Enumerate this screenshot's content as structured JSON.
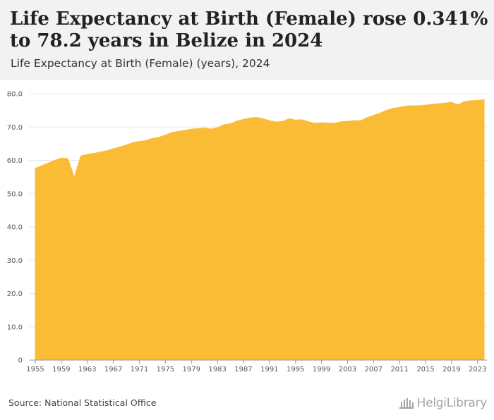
{
  "header": {
    "title": "Life Expectancy at Birth (Female) rose 0.341% to 78.2 years in Belize in 2024",
    "subtitle": "Life Expectancy at Birth (Female) (years), 2024"
  },
  "footer": {
    "source": "Source: National Statistical Office",
    "logo_text": "HelgiLibrary"
  },
  "colors": {
    "area": "#fbbc35",
    "grid": "#e6e6e6",
    "axis": "#999999"
  },
  "chart_data": {
    "type": "area",
    "title": "Life Expectancy at Birth (Female) (years), 2024",
    "xlabel": "",
    "ylabel": "",
    "ylim": [
      0,
      80
    ],
    "yticks": [
      "0",
      "10.0",
      "20.0",
      "30.0",
      "40.0",
      "50.0",
      "60.0",
      "70.0",
      "80.0"
    ],
    "yticks_values": [
      0,
      10,
      20,
      30,
      40,
      50,
      60,
      70,
      80
    ],
    "xticks": [
      "1955",
      "1959",
      "1963",
      "1967",
      "1971",
      "1975",
      "1979",
      "1983",
      "1987",
      "1991",
      "1995",
      "1999",
      "2003",
      "2007",
      "2011",
      "2015",
      "2019",
      "2023"
    ],
    "grid": true,
    "x": [
      1955,
      1956,
      1957,
      1958,
      1959,
      1960,
      1961,
      1962,
      1963,
      1964,
      1965,
      1966,
      1967,
      1968,
      1969,
      1970,
      1971,
      1972,
      1973,
      1974,
      1975,
      1976,
      1977,
      1978,
      1979,
      1980,
      1981,
      1982,
      1983,
      1984,
      1985,
      1986,
      1987,
      1988,
      1989,
      1990,
      1991,
      1992,
      1993,
      1994,
      1995,
      1996,
      1997,
      1998,
      1999,
      2000,
      2001,
      2002,
      2003,
      2004,
      2005,
      2006,
      2007,
      2008,
      2009,
      2010,
      2011,
      2012,
      2013,
      2014,
      2015,
      2016,
      2017,
      2018,
      2019,
      2020,
      2021,
      2022,
      2023,
      2024
    ],
    "series": [
      {
        "name": "Life Expectancy at Birth (Female)",
        "values": [
          57.6,
          58.4,
          59.2,
          60.0,
          60.7,
          60.5,
          54.9,
          61.3,
          61.8,
          62.1,
          62.5,
          62.9,
          63.5,
          64.0,
          64.6,
          65.3,
          65.7,
          65.9,
          66.6,
          66.9,
          67.6,
          68.3,
          68.7,
          69.0,
          69.4,
          69.5,
          69.7,
          69.4,
          69.8,
          70.7,
          71.0,
          71.8,
          72.3,
          72.7,
          72.9,
          72.5,
          71.9,
          71.5,
          71.7,
          72.5,
          72.1,
          72.2,
          71.6,
          71.1,
          71.3,
          71.2,
          71.1,
          71.6,
          71.7,
          71.9,
          71.9,
          72.8,
          73.5,
          74.2,
          75.0,
          75.6,
          75.9,
          76.3,
          76.4,
          76.4,
          76.6,
          76.8,
          77.0,
          77.2,
          77.4,
          76.7,
          77.7,
          77.9,
          78.0,
          78.2
        ]
      }
    ]
  }
}
